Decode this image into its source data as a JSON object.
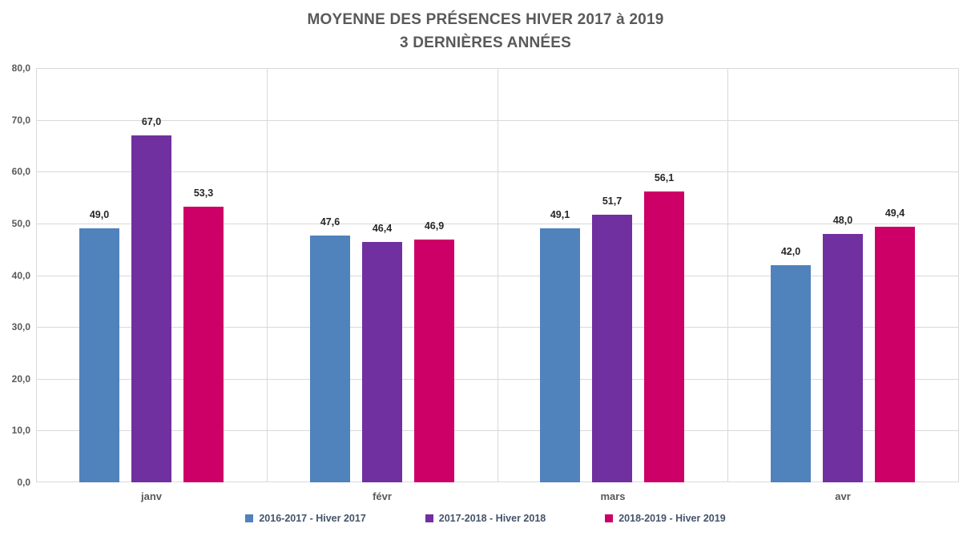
{
  "chart_data": {
    "type": "bar",
    "title": [
      "MOYENNE DES PRÉSENCES HIVER 2017 à 2019",
      "3 DERNIÈRES ANNÉES"
    ],
    "categories": [
      "janv",
      "févr",
      "mars",
      "avr"
    ],
    "series": [
      {
        "name": "2016-2017 - Hiver 2017",
        "color": "#5082BC",
        "values": [
          49.0,
          47.6,
          49.1,
          42.0
        ],
        "value_labels": [
          "49,0",
          "47,6",
          "49,1",
          "42,0"
        ]
      },
      {
        "name": "2017-2018 - Hiver 2018",
        "color": "#7030A0",
        "values": [
          67.0,
          46.4,
          51.7,
          48.0
        ],
        "value_labels": [
          "67,0",
          "46,4",
          "51,7",
          "48,0"
        ]
      },
      {
        "name": "2018-2019 - Hiver 2019",
        "color": "#CC0066",
        "values": [
          53.3,
          46.9,
          56.1,
          49.4
        ],
        "value_labels": [
          "53,3",
          "46,9",
          "56,1",
          "49,4"
        ]
      }
    ],
    "xlabel": "",
    "ylabel": "",
    "y_axis": {
      "min": 0,
      "max": 80,
      "ticks": [
        {
          "value": 0,
          "label": "0,0"
        },
        {
          "value": 10,
          "label": "10,0"
        },
        {
          "value": 20,
          "label": "20,0"
        },
        {
          "value": 30,
          "label": "30,0"
        },
        {
          "value": 40,
          "label": "40,0"
        },
        {
          "value": 50,
          "label": "50,0"
        },
        {
          "value": 60,
          "label": "60,0"
        },
        {
          "value": 70,
          "label": "70,0"
        },
        {
          "value": 80,
          "label": "80,0"
        }
      ]
    },
    "grid": {
      "horizontal": true,
      "vertical_category_boundaries": true,
      "color": "#D9D9D9"
    },
    "legend_position": "bottom",
    "colors": {
      "title_text": "#595959",
      "axis_text": "#595959",
      "data_label_text": "#262626",
      "legend_text": "#44546A",
      "background": "#FFFFFF"
    }
  }
}
